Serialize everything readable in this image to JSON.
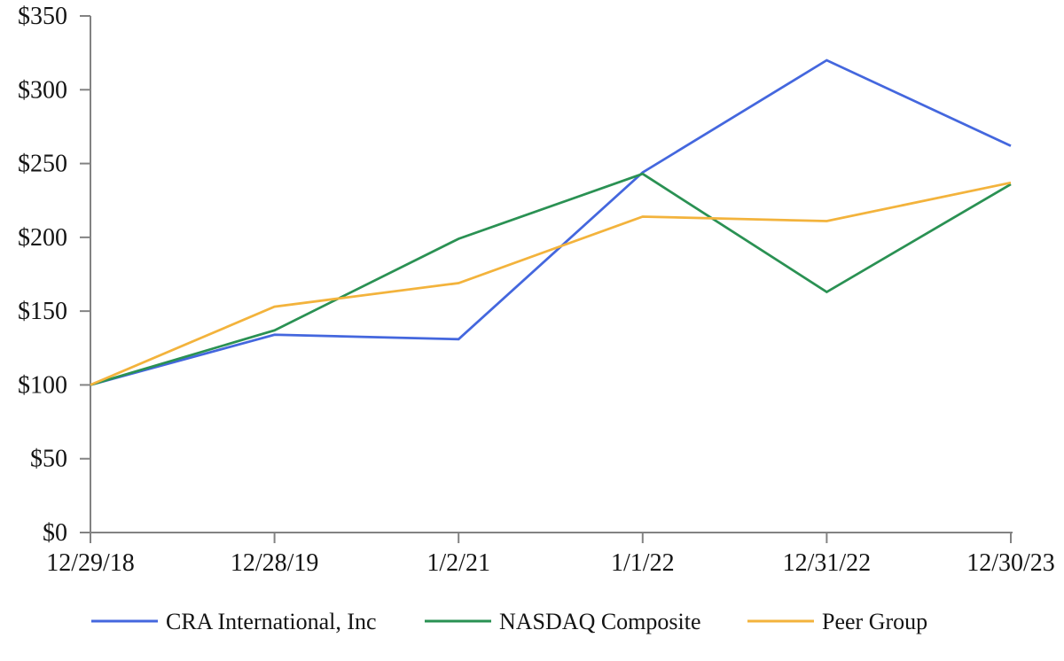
{
  "chart_data": {
    "type": "line",
    "title": "",
    "xlabel": "",
    "ylabel": "",
    "grid": false,
    "legend_position": "bottom",
    "categories": [
      "12/29/18",
      "12/28/19",
      "1/2/21",
      "1/1/22",
      "12/31/22",
      "12/30/23"
    ],
    "series": [
      {
        "name": "CRA International, Inc",
        "color": "#4467DE",
        "values": [
          100,
          134,
          131,
          244,
          320,
          262
        ]
      },
      {
        "name": "NASDAQ Composite",
        "color": "#2A9153",
        "values": [
          100,
          137,
          199,
          243,
          163,
          236
        ]
      },
      {
        "name": "Peer Group",
        "color": "#F3B33C",
        "values": [
          100,
          153,
          169,
          214,
          211,
          237
        ]
      }
    ],
    "ylim": [
      0,
      350
    ],
    "y_tick_step": 50,
    "y_tick_labels": [
      "$0",
      "$50",
      "$100",
      "$150",
      "$200",
      "$250",
      "$300",
      "$350"
    ],
    "axis_color": "#828282",
    "text_color": "#141414"
  }
}
